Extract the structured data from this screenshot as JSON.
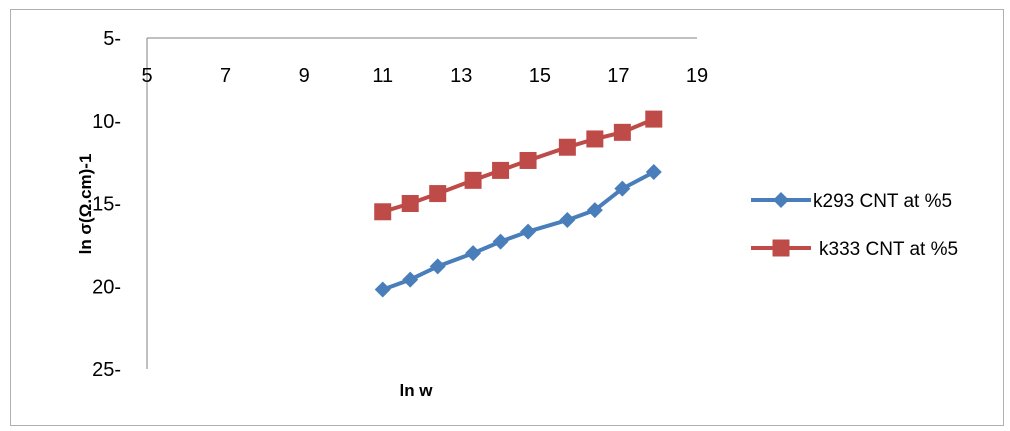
{
  "chart_data": {
    "type": "line",
    "title": "",
    "xlabel": "ln w",
    "ylabel": "ln σ(Ω.cm)-1",
    "xlim": [
      5,
      19
    ],
    "ylim": [
      5,
      25
    ],
    "y_inverted": true,
    "x_axis_position": "top",
    "x_ticks": [
      5,
      7,
      9,
      11,
      13,
      15,
      17,
      19
    ],
    "x_tick_labels": [
      "5",
      "7",
      "9",
      "11",
      "13",
      "15",
      "17",
      "19"
    ],
    "y_ticks": [
      5,
      10,
      15,
      20,
      25
    ],
    "y_tick_labels": [
      "5-",
      "10-",
      "15-",
      "20-",
      "25-"
    ],
    "grid": false,
    "legend_position": "right",
    "series": [
      {
        "name": "k293 CNT at  %5",
        "color": "#4a7ebb",
        "marker": "diamond",
        "x": [
          11.0,
          11.7,
          12.4,
          13.3,
          14.0,
          14.7,
          15.7,
          16.4,
          17.1,
          17.9
        ],
        "y": [
          20.2,
          19.6,
          18.8,
          18.0,
          17.3,
          16.7,
          16.0,
          15.4,
          14.1,
          13.1
        ]
      },
      {
        "name": "k333 CNT at  %5",
        "color": "#be4b48",
        "marker": "square",
        "x": [
          11.0,
          11.7,
          12.4,
          13.3,
          14.0,
          14.7,
          15.7,
          16.4,
          17.1,
          17.9
        ],
        "y": [
          15.5,
          15.0,
          14.4,
          13.6,
          13.0,
          12.4,
          11.6,
          11.1,
          10.7,
          9.9
        ]
      }
    ]
  }
}
